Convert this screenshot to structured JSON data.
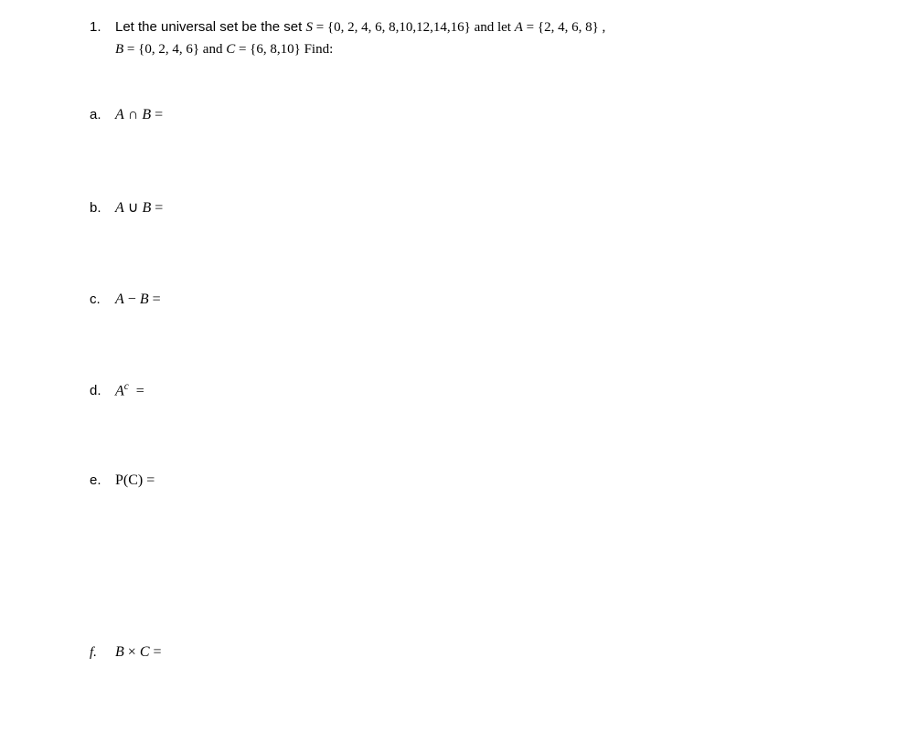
{
  "question": {
    "number": "1.",
    "line1_pre": "Let the universal set be the set  ",
    "line1_S": "S",
    "line1_eq1": " = {0, 2, 4, 6, 8,10,12,14,16}   and let  ",
    "line1_A": "A",
    "line1_eq2": " = {2, 4, 6, 8} ,",
    "line2_B": "B",
    "line2_eq3": " = {0, 2, 4, 6} and  ",
    "line2_C": "C",
    "line2_eq4": " = {6, 8,10}  Find:"
  },
  "items": {
    "a": {
      "label": "a.",
      "expr_html": "<span class='math'>A</span> <span class='mathup'>∩</span> <span class='math'>B</span> <span class='mathup'>=</span>"
    },
    "b": {
      "label": "b.",
      "expr_html": "<span class='math'>A</span> <span class='mathup'>∪</span> <span class='math'>B</span> <span class='mathup'>=</span>"
    },
    "c": {
      "label": "c.",
      "expr_html": "<span class='math'>A</span> <span class='mathup'>−</span> <span class='math'>B</span> <span class='mathup'>=</span>"
    },
    "d": {
      "label": "d.",
      "expr_html": "<span class='math'>A</span><sup><span class='math'>c</span></sup>&nbsp; <span class='mathup'>=</span>"
    },
    "e": {
      "label": "e.",
      "expr_html": "<span class='script'>P</span><span class='mathup'>(C) =</span>"
    },
    "f": {
      "label": "f.",
      "expr_html": "<span class='math'>B</span> <span class='mathup'>×</span> <span class='math'>C</span> <span class='mathup'>=</span>",
      "label_italic": true
    }
  }
}
